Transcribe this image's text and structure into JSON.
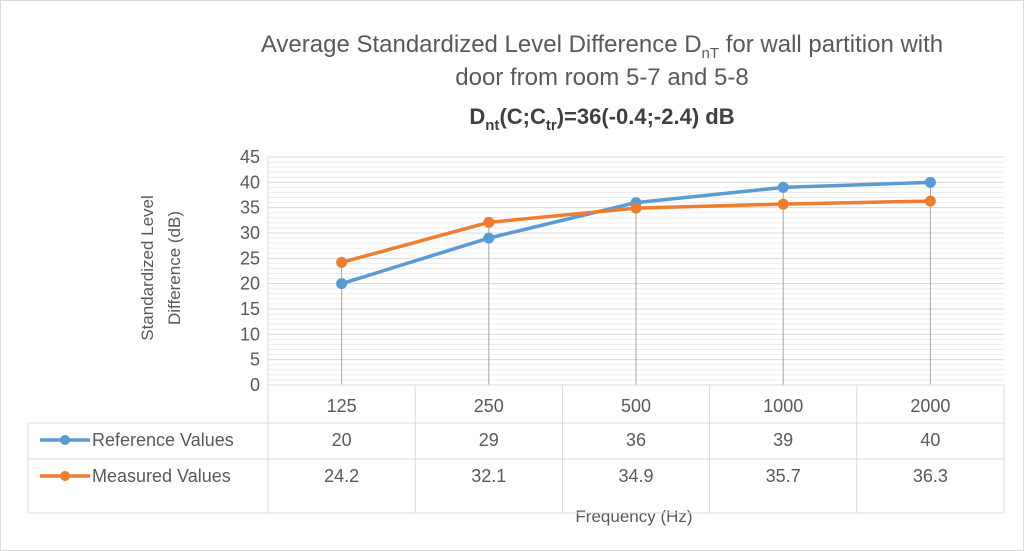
{
  "chart_data": {
    "type": "line",
    "title_parts": {
      "line1_prefix": "Average Standardized Level Difference D",
      "line1_sub": "nT",
      "line1_suffix": " for wall partition with",
      "line2": "door from room 5-7 and 5-8",
      "line3_a": "D",
      "line3_a_sub": "nt",
      "line3_b": "(C;C",
      "line3_b_sub": "tr",
      "line3_c": ")=36(-0.4;-2.4) dB"
    },
    "xlabel": "Frequency (Hz)",
    "ylabel_line1": "Standardized Level",
    "ylabel_line2": "Difference (dB)",
    "categories": [
      "125",
      "250",
      "500",
      "1000",
      "2000"
    ],
    "ylim": [
      0,
      45
    ],
    "ytick_step": 5,
    "yticks": [
      "0",
      "5",
      "10",
      "15",
      "20",
      "25",
      "30",
      "35",
      "40",
      "45"
    ],
    "grid": true,
    "legend_position": "data-table-left",
    "series": [
      {
        "name": "Reference Values",
        "color": "#5b9bd5",
        "values": [
          20,
          29,
          36,
          39,
          40
        ],
        "labels": [
          "20",
          "29",
          "36",
          "39",
          "40"
        ]
      },
      {
        "name": "Measured Values",
        "color": "#ed7d31",
        "values": [
          24.2,
          32.1,
          34.9,
          35.7,
          36.3
        ],
        "labels": [
          "24.2",
          "32.1",
          "34.9",
          "35.7",
          "36.3"
        ]
      }
    ]
  }
}
